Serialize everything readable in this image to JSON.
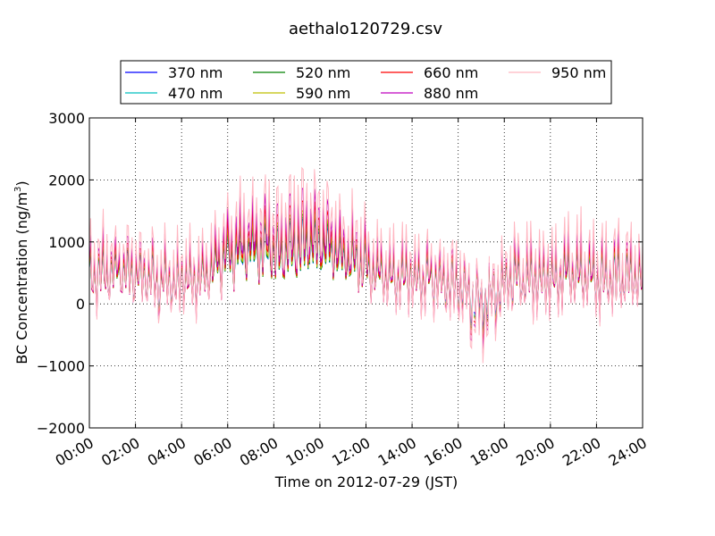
{
  "chart_data": {
    "type": "line",
    "title": "aethalo120729.csv",
    "xlabel": "Time on 2012-07-29 (JST)",
    "ylabel": "BC Concentration (ng/m",
    "ylabel_sup": "3",
    "ylabel_tail": ")",
    "xlim": [
      "00:00",
      "24:00"
    ],
    "ylim": [
      -2000,
      3000
    ],
    "yticks": [
      -2000,
      -1000,
      0,
      1000,
      2000,
      3000
    ],
    "ytick_labels": [
      "−2000",
      "−1000",
      "0",
      "1000",
      "2000",
      "3000"
    ],
    "xtick_labels": [
      "00:00",
      "02:00",
      "04:00",
      "06:00",
      "08:00",
      "10:00",
      "12:00",
      "14:00",
      "16:00",
      "18:00",
      "20:00",
      "22:00",
      "24:00"
    ],
    "grid": true,
    "legend_position": "top",
    "series": [
      {
        "name": "370 nm",
        "color": "#0000ff",
        "scale": 0.75,
        "offset": 80
      },
      {
        "name": "470 nm",
        "color": "#00bfbf",
        "scale": 0.78,
        "offset": 60
      },
      {
        "name": "520 nm",
        "color": "#008000",
        "scale": 0.82,
        "offset": 40
      },
      {
        "name": "590 nm",
        "color": "#bfbf00",
        "scale": 0.86,
        "offset": 30
      },
      {
        "name": "660 nm",
        "color": "#ff0000",
        "scale": 0.97,
        "offset": 0
      },
      {
        "name": "880 nm",
        "color": "#bf00bf",
        "scale": 1.1,
        "offset": -20
      },
      {
        "name": "950 nm",
        "color": "#ffb6c1",
        "scale": 1.3,
        "offset": -40
      }
    ],
    "envelope": {
      "hours": [
        0,
        1,
        2,
        3,
        4,
        5,
        6,
        7,
        8,
        9,
        10,
        11,
        12,
        13,
        14,
        15,
        16,
        17,
        18,
        19,
        20,
        21,
        22,
        23,
        24
      ],
      "mean": [
        500,
        600,
        550,
        400,
        350,
        500,
        900,
        1100,
        1000,
        1050,
        1100,
        900,
        700,
        500,
        450,
        400,
        300,
        -100,
        400,
        450,
        500,
        550,
        500,
        450,
        500
      ],
      "amplitude": [
        600,
        650,
        650,
        600,
        650,
        650,
        600,
        650,
        700,
        800,
        650,
        650,
        650,
        650,
        600,
        600,
        800,
        750,
        600,
        650,
        700,
        700,
        700,
        700,
        600
      ],
      "gap_hours": [
        9.55,
        16.7,
        17.4
      ]
    }
  }
}
